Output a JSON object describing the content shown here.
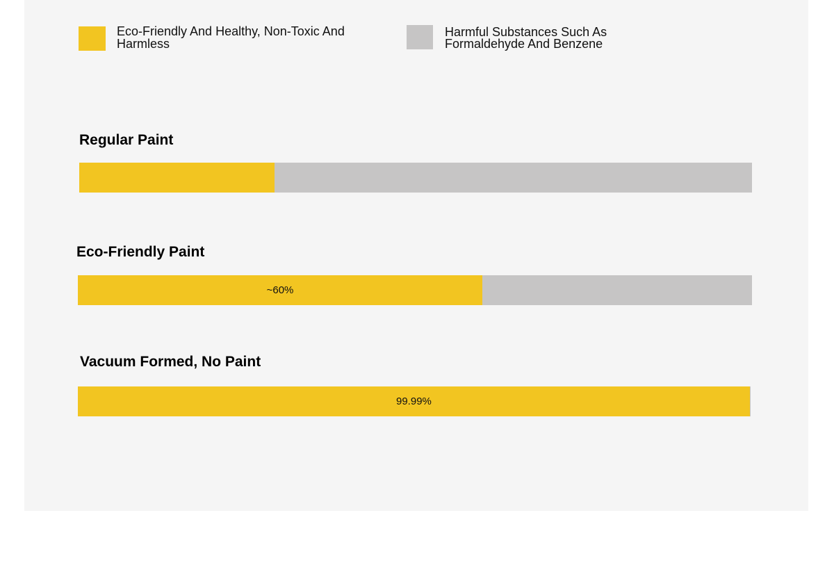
{
  "colors": {
    "eco": "#f2c521",
    "harmful": "#c6c5c5",
    "panel": "#f5f5f5"
  },
  "legend": [
    {
      "label": "Eco-Friendly And Healthy, Non-Toxic And Harmless",
      "color": "#f2c521"
    },
    {
      "label": "Harmful Substances Such As Formaldehyde And Benzene",
      "color": "#c6c5c5"
    }
  ],
  "chart_data": {
    "type": "bar",
    "orientation": "horizontal-stacked",
    "categories": [
      "Regular Paint",
      "Eco-Friendly Paint",
      "Vacuum Formed, No Paint"
    ],
    "series": [
      {
        "name": "Eco-Friendly And Healthy, Non-Toxic And Harmless",
        "values": [
          29,
          60,
          99.99
        ]
      },
      {
        "name": "Harmful Substances Such As Formaldehyde And Benzene",
        "values": [
          71,
          40,
          0.01
        ]
      }
    ],
    "data_labels": [
      "",
      "~60%",
      "99.99%"
    ],
    "xlim": [
      0,
      100
    ],
    "legend_position": "top",
    "grid": false
  }
}
